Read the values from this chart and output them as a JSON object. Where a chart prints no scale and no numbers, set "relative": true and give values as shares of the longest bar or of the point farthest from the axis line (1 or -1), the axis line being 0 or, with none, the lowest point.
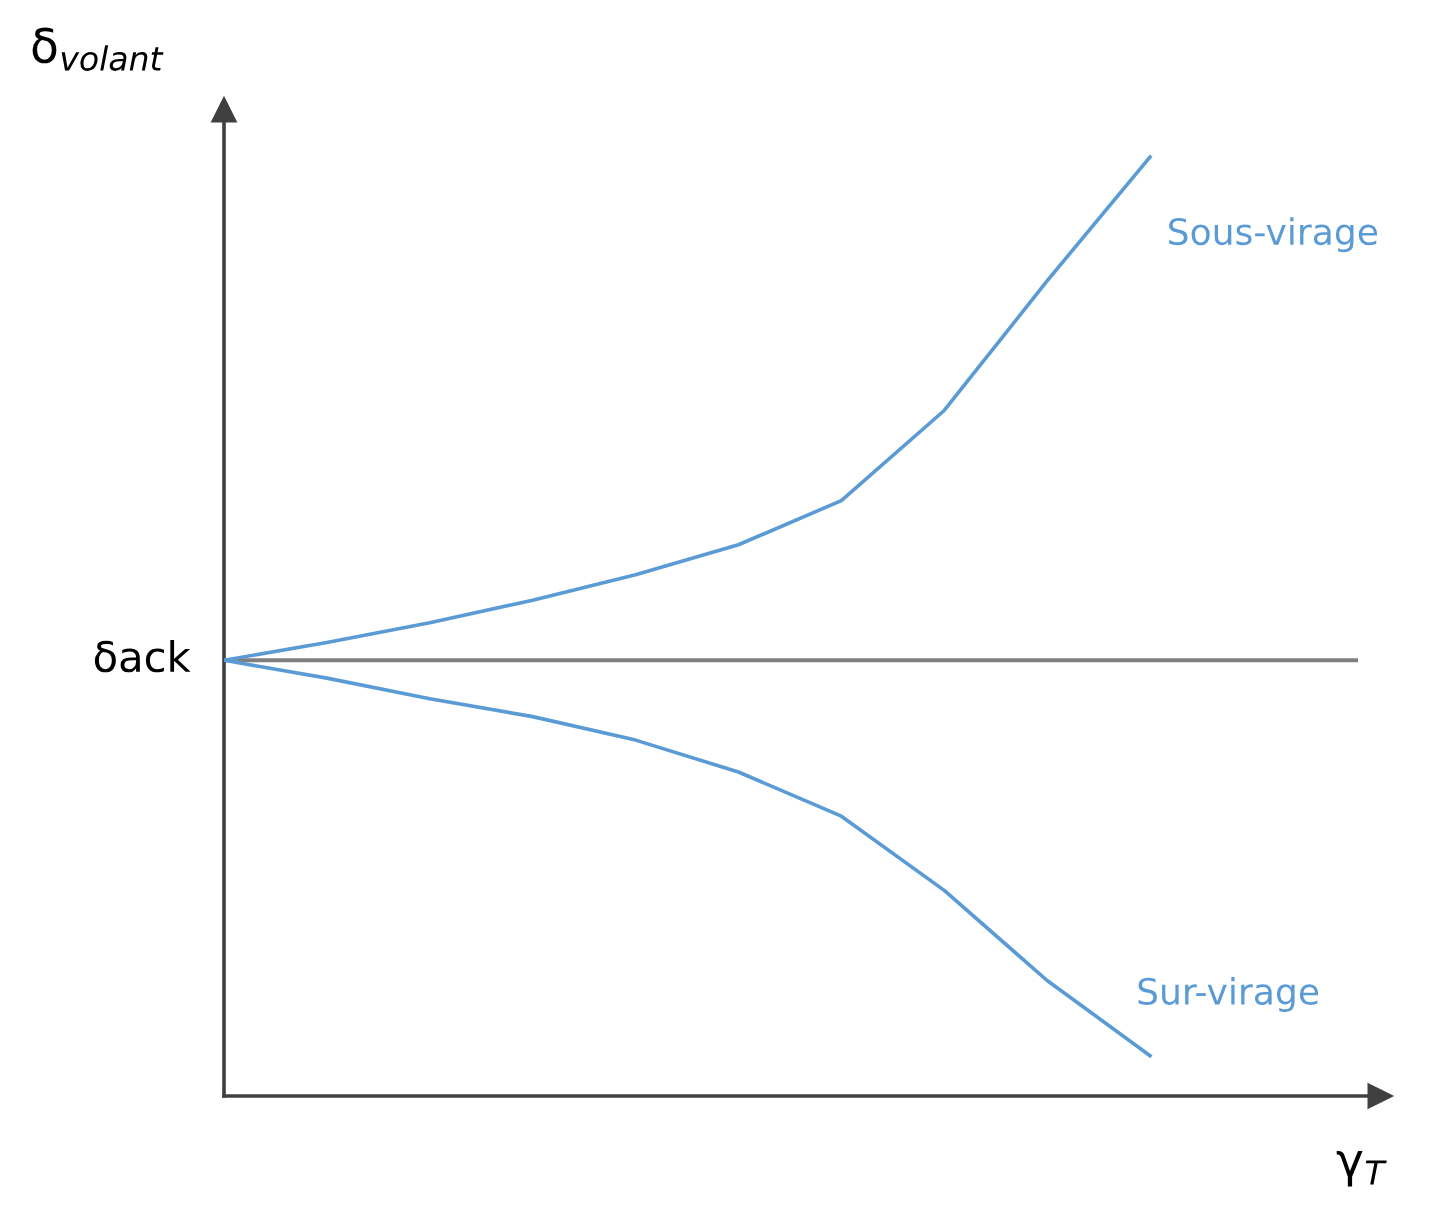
{
  "chart_data": {
    "type": "line",
    "relative": true,
    "xlabel": "γ$_{T}$",
    "ylabel": "δ$_{volant}$",
    "categories": [
      null,
      null,
      null,
      null,
      null,
      null,
      null,
      null,
      null,
      null
    ],
    "series": [
      {
        "name": "Sous-virage",
        "color": "#5b9bd5",
        "values": [
          0.464,
          0.483,
          0.504,
          0.528,
          0.555,
          0.587,
          0.634,
          0.73,
          0.868,
          1.0
        ]
      },
      {
        "name": "Sur-virage",
        "color": "#5b9bd5",
        "values": [
          0.464,
          0.445,
          0.423,
          0.404,
          0.379,
          0.345,
          0.298,
          0.219,
          0.123,
          0.043
        ]
      }
    ],
    "ref_lines": [
      {
        "axis": "y",
        "value": 0.464,
        "label": "δack",
        "color": "#7f7f7f"
      }
    ],
    "marker": "none",
    "line_style": "solid"
  }
}
